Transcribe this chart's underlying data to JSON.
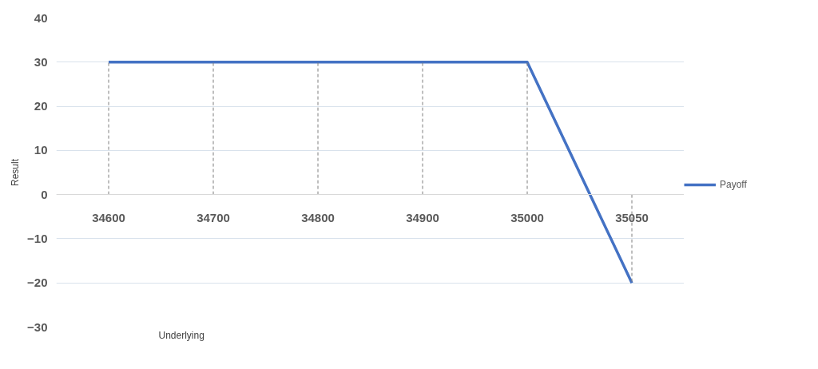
{
  "chart_data": {
    "type": "line",
    "xlabel": "Underlying",
    "ylabel": "Result",
    "categories": [
      "34600",
      "34700",
      "34800",
      "34900",
      "35000",
      "35050"
    ],
    "series": [
      {
        "name": "Payoff",
        "color": "#4472c4",
        "values": [
          30,
          30,
          30,
          30,
          30,
          -20
        ]
      },
      {
        "color": "#7f7f7f",
        "line_style": "dashed",
        "x": [
          "34600",
          "34600"
        ],
        "values": [
          0,
          30
        ]
      },
      {
        "color": "#7f7f7f",
        "line_style": "dashed",
        "x": [
          "34700",
          "34700"
        ],
        "values": [
          0,
          30
        ]
      },
      {
        "color": "#7f7f7f",
        "line_style": "dashed",
        "x": [
          "34800",
          "34800"
        ],
        "values": [
          0,
          30
        ]
      },
      {
        "color": "#7f7f7f",
        "line_style": "dashed",
        "x": [
          "34900",
          "34900"
        ],
        "values": [
          0,
          30
        ]
      },
      {
        "color": "#7f7f7f",
        "line_style": "dashed",
        "x": [
          "35000",
          "35000"
        ],
        "values": [
          0,
          30
        ]
      },
      {
        "color": "#7f7f7f",
        "line_style": "dashed",
        "x": [
          "35050",
          "35050"
        ],
        "values": [
          0,
          -20
        ]
      }
    ],
    "ylim": [
      -30,
      40
    ],
    "yticks": [
      -30,
      -20,
      -10,
      0,
      10,
      20,
      30,
      40
    ],
    "grid": "y",
    "legend": "right",
    "marker": "none",
    "line_style": "solid"
  }
}
